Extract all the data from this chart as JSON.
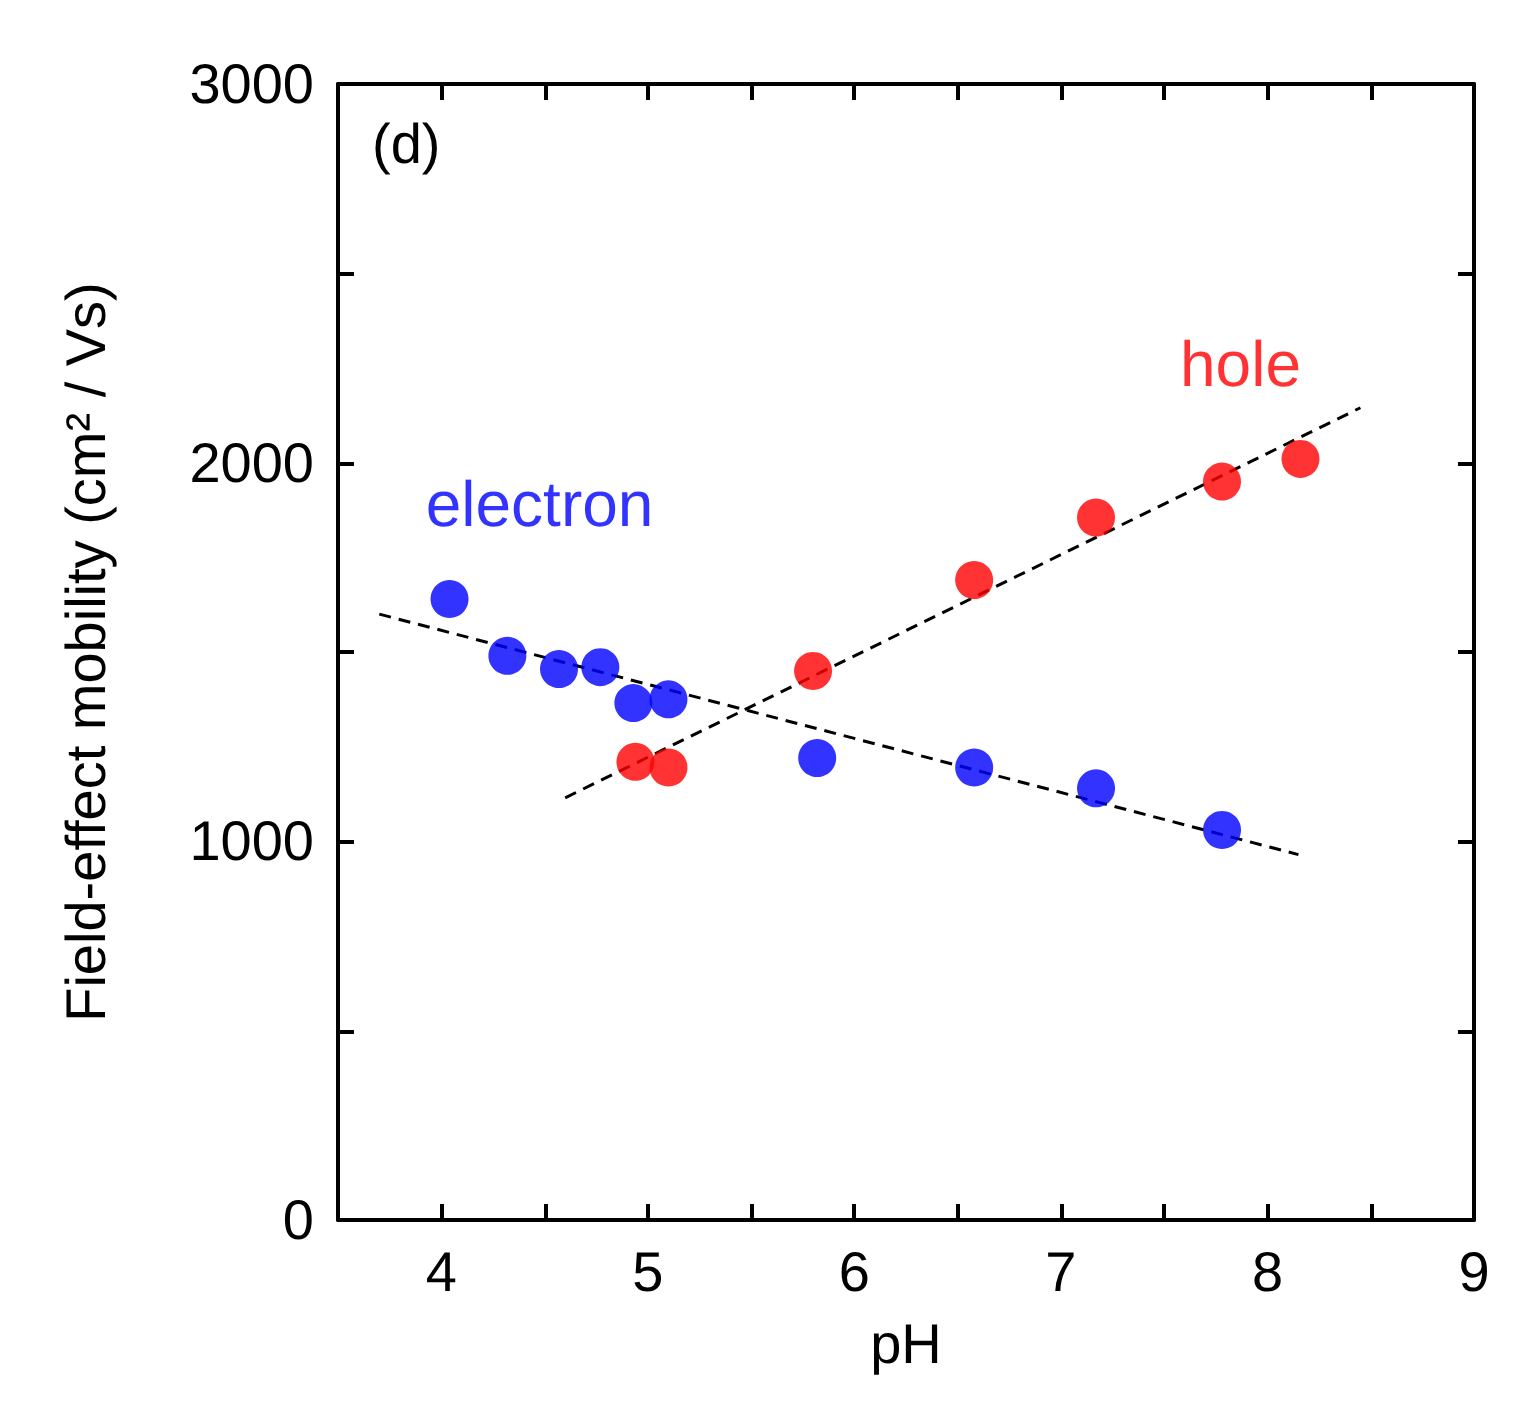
{
  "chart_data": {
    "type": "scatter",
    "xlabel": "pH",
    "ylabel": "Field-effect mobility (cm² / Vs)",
    "annotations": [
      "(d)"
    ],
    "xlim": [
      3.5,
      9
    ],
    "xticks": [
      4,
      {
        "value": 4.5,
        "label": null
      },
      5,
      {
        "value": 5.5,
        "label": null
      },
      6,
      {
        "value": 6.5,
        "label": null
      },
      7,
      {
        "value": 7.5,
        "label": null
      },
      8,
      {
        "value": 8.5,
        "label": null
      },
      9
    ],
    "ylim": [
      0,
      3000
    ],
    "yticks": [
      0,
      {
        "value": 500,
        "label": null
      },
      1000,
      {
        "value": 1500,
        "label": null
      },
      2000,
      {
        "value": 2500,
        "label": null
      },
      3000
    ],
    "grid": false,
    "legend": false,
    "marker": "circle",
    "series": [
      {
        "name": "electron",
        "color": "#0000ff",
        "x": [
          4.04,
          4.32,
          4.57,
          4.77,
          4.93,
          5.1,
          5.82,
          6.58,
          7.17,
          7.78
        ],
        "values": [
          1640,
          1490,
          1455,
          1460,
          1365,
          1375,
          1220,
          1195,
          1140,
          1030
        ]
      },
      {
        "name": "hole",
        "color": "#ff0000",
        "x": [
          4.94,
          5.1,
          5.8,
          6.58,
          7.17,
          7.78,
          8.16
        ],
        "values": [
          1210,
          1195,
          1450,
          1690,
          1855,
          1950,
          2010
        ]
      },
      {
        "type": "line",
        "color": "#000000",
        "line_style": "dashed",
        "marker": "none",
        "x": [
          3.7,
          8.15
        ],
        "values": [
          1600,
          965
        ]
      },
      {
        "type": "line",
        "color": "#000000",
        "line_style": "dashed",
        "marker": "none",
        "x": [
          4.6,
          8.45
        ],
        "values": [
          1115,
          2145
        ]
      }
    ]
  }
}
